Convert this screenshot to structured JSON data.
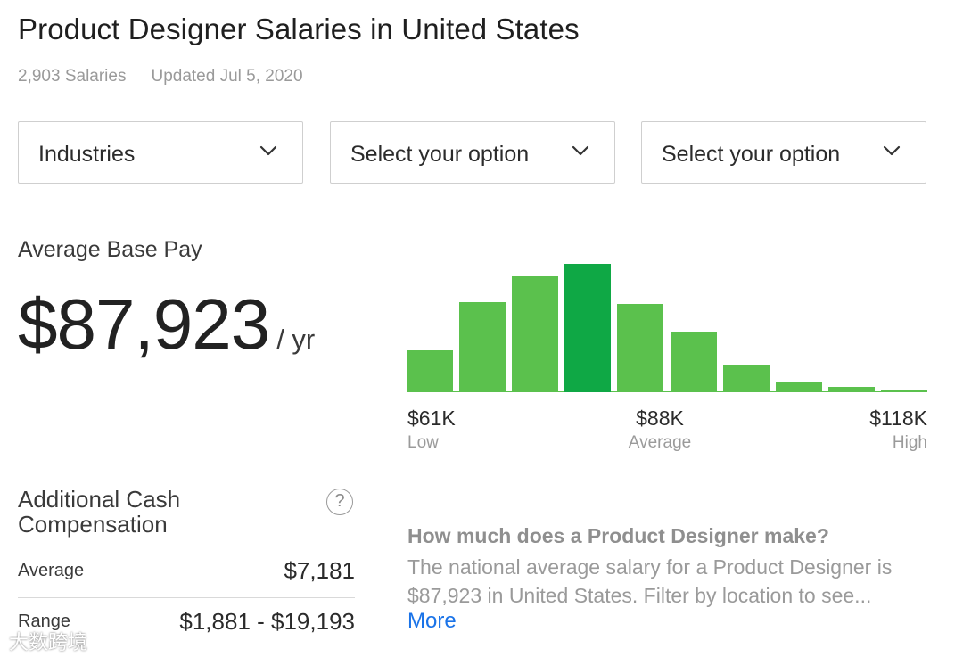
{
  "header": {
    "title": "Product Designer Salaries in United States",
    "salaries_count": "2,903 Salaries",
    "updated": "Updated Jul 5, 2020"
  },
  "filters": [
    {
      "label": "Industries",
      "icon": "chevron-down-icon"
    },
    {
      "label": "Select your option",
      "icon": "chevron-down-icon"
    },
    {
      "label": "Select your option",
      "icon": "chevron-down-icon"
    }
  ],
  "base_pay": {
    "label": "Average Base Pay",
    "amount": "$87,923",
    "unit": "/ yr"
  },
  "chart_data": {
    "type": "bar",
    "values": [
      47,
      101,
      130,
      144,
      99,
      68,
      31,
      12,
      6,
      2
    ],
    "highlight_index": 3,
    "colors": {
      "bar": "#5bc14d",
      "highlight": "#0fa845"
    },
    "axis": {
      "low": {
        "value": "$61K",
        "label": "Low"
      },
      "average": {
        "value": "$88K",
        "label": "Average"
      },
      "high": {
        "value": "$118K",
        "label": "High"
      }
    }
  },
  "additional_cash": {
    "title": "Additional Cash Compensation",
    "help_icon": "?",
    "rows": [
      {
        "label": "Average",
        "value": "$7,181"
      },
      {
        "label": "Range",
        "value": "$1,881 - $19,193"
      }
    ]
  },
  "faq": {
    "question": "How much does a Product Designer make?",
    "answer": "The national average salary for a Product Designer is $87,923 in United States. Filter by location to see...",
    "more": "More"
  },
  "watermark": "大数跨境",
  "colors": {
    "accent_link": "#1a73e8",
    "bar": "#5bc14d",
    "bar_highlight": "#0fa845"
  }
}
